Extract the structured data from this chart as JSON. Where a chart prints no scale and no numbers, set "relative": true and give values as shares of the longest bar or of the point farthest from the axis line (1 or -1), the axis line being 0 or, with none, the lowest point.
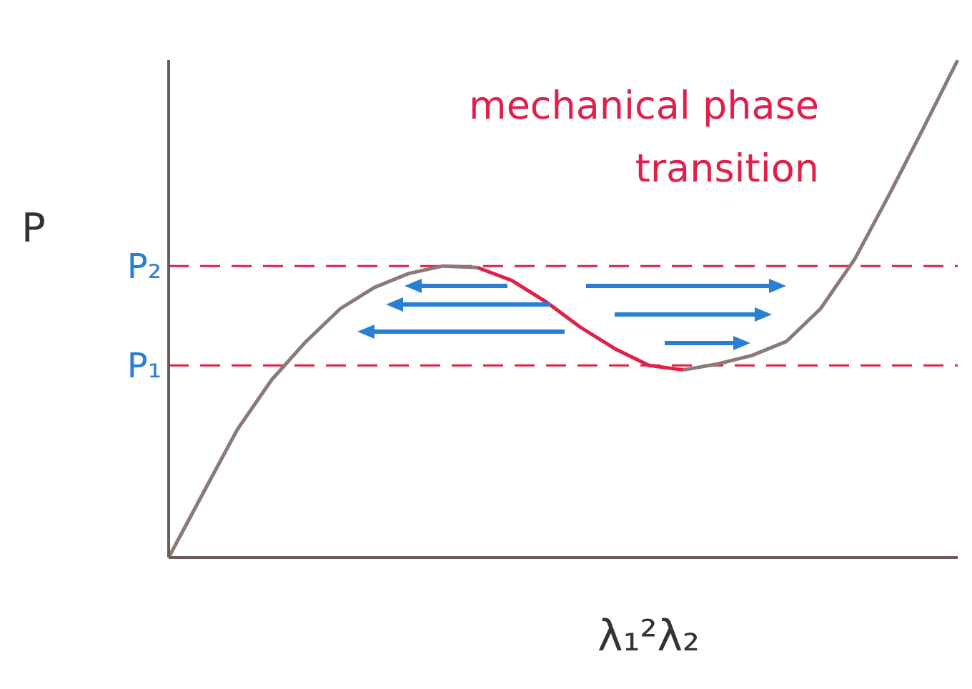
{
  "chart_data": {
    "type": "line",
    "relative": true,
    "xlabel": "λ₁²λ₂",
    "ylabel": "P",
    "annotations": [
      "mechanical phase transition"
    ],
    "categories": [
      null,
      null,
      null,
      null,
      null,
      null,
      null,
      null,
      null,
      null,
      null,
      null,
      null,
      null,
      null,
      null,
      null,
      null,
      null,
      null,
      null,
      null,
      null,
      null
    ],
    "series": [
      {
        "color": "#8a7a78",
        "values": [
          0,
          0.129,
          0.257,
          0.357,
          0.434,
          0.5,
          0.543,
          0.571,
          0.586,
          0.583,
          null,
          null,
          null,
          null,
          null,
          0.377,
          0.389,
          0.406,
          0.434,
          0.5,
          0.6,
          0.729,
          0.863,
          1
        ]
      },
      {
        "color": "#e0204a",
        "values": [
          null,
          null,
          null,
          null,
          null,
          null,
          null,
          null,
          null,
          0.583,
          0.557,
          0.514,
          0.463,
          0.42,
          0.386,
          0.377,
          null,
          null,
          null,
          null,
          null,
          null,
          null,
          null
        ]
      }
    ],
    "ref_lines": [
      {
        "axis": "y",
        "value": 0.586,
        "label": "P₂",
        "color": "#e0204a",
        "line_style": "dashed"
      },
      {
        "axis": "y",
        "value": 0.386,
        "label": "P₁",
        "color": "#e0204a",
        "line_style": "dashed"
      }
    ],
    "legend": false,
    "grid": false
  }
}
